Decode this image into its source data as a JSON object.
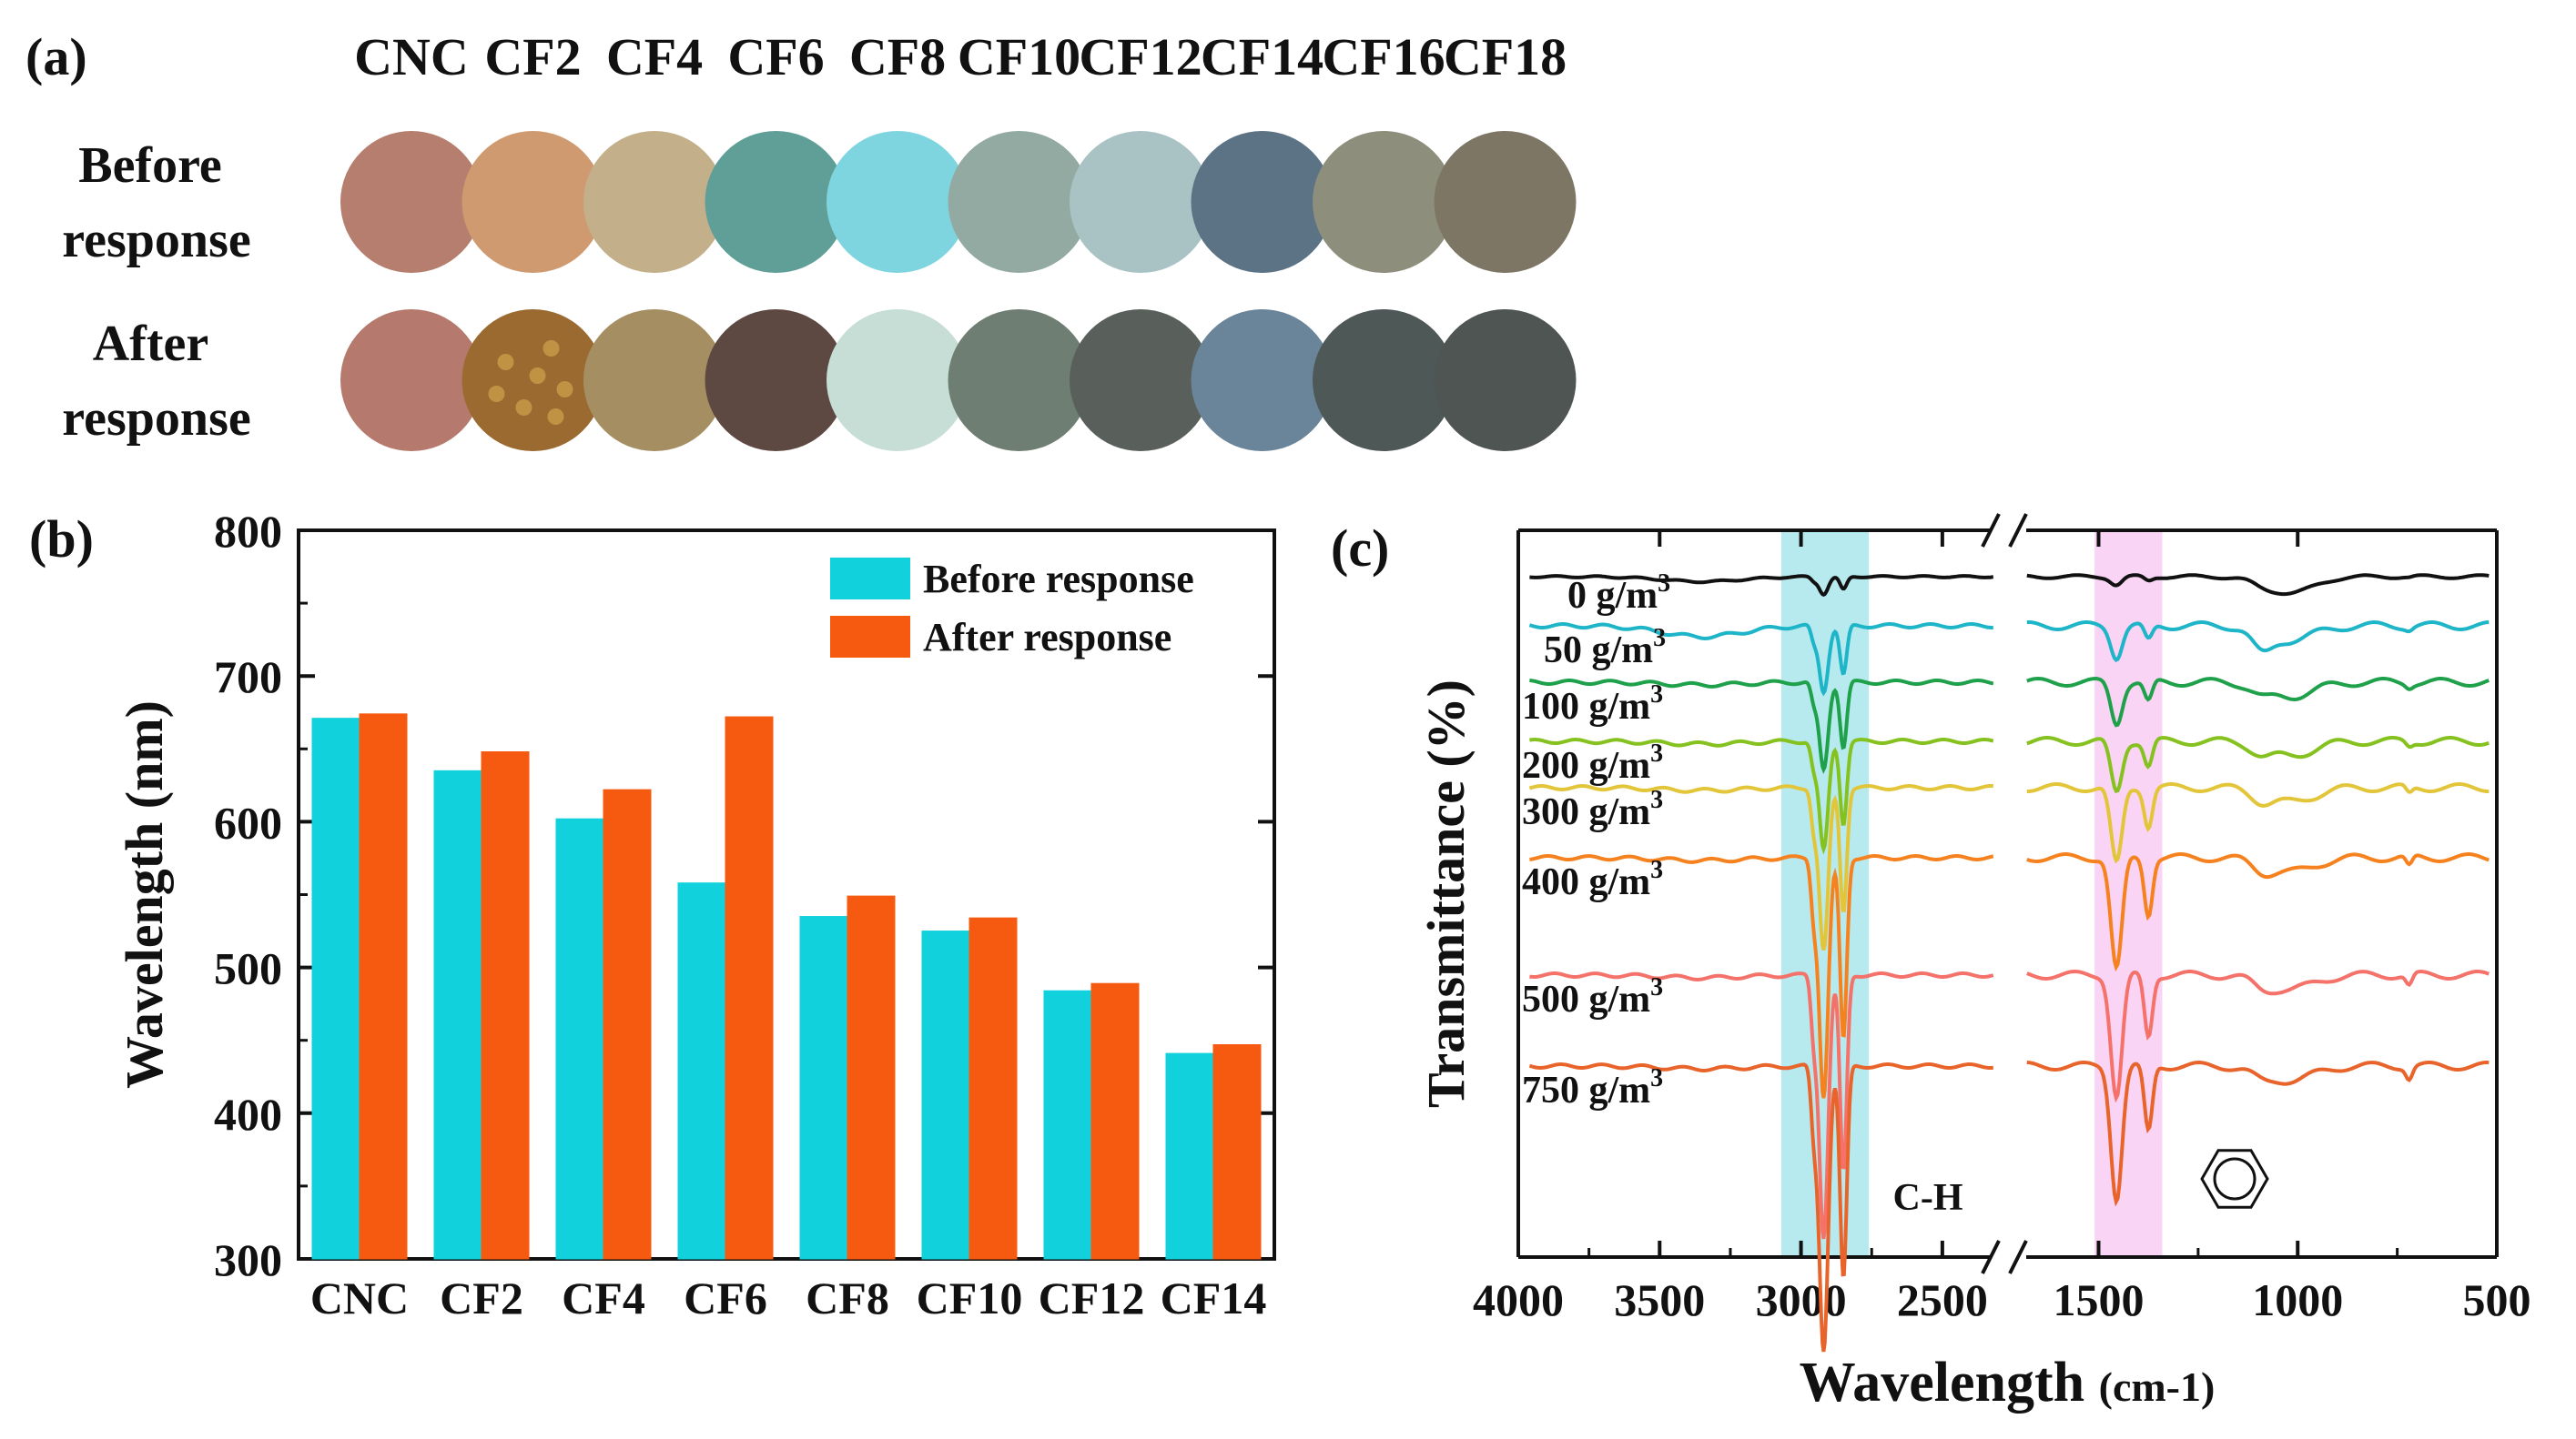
{
  "panel_a": {
    "label": "(a)",
    "row_labels": [
      [
        "Before",
        "response"
      ],
      [
        "After",
        "response"
      ]
    ],
    "samples": [
      "CNC",
      "CF2",
      "CF4",
      "CF6",
      "CF8",
      "CF10",
      "CF12",
      "CF14",
      "CF16",
      "CF18"
    ],
    "before_colors": [
      "#b57e6e",
      "#cf9a70",
      "#c3b08a",
      "#5f9f98",
      "#7fd5df",
      "#93aaa3",
      "#a9c2c4",
      "#5c7385",
      "#8e8e7c",
      "#7e7665"
    ],
    "after_colors": [
      "#b57a6d",
      "#9a6a30",
      "#a58f62",
      "#5e4942",
      "#c7ded6",
      "#6e7e72",
      "#59605b",
      "#6a8499",
      "#4d5857",
      "#4f5552"
    ]
  },
  "panel_b": {
    "label": "(b)"
  },
  "panel_c": {
    "label": "(c)"
  },
  "chart_data": [
    {
      "type": "bar",
      "panel": "(b)",
      "categories": [
        "CNC",
        "CF2",
        "CF4",
        "CF6",
        "CF8",
        "CF10",
        "CF12",
        "CF14"
      ],
      "series": [
        {
          "name": "Before response",
          "color": "#11d1dd",
          "values": [
            671,
            635,
            602,
            558,
            535,
            525,
            484,
            441
          ]
        },
        {
          "name": "After response",
          "color": "#f55a10",
          "values": [
            674,
            648,
            622,
            672,
            549,
            534,
            489,
            447
          ]
        }
      ],
      "ylabel": "Wavelength (nm)",
      "ylim": [
        300,
        800
      ],
      "yticks": [
        300,
        400,
        500,
        600,
        700,
        800
      ],
      "legend": "top-right"
    },
    {
      "type": "line",
      "panel": "(c)",
      "xlabel": "Wavelength",
      "xlabel_unit": "(cm-1)",
      "ylabel": "Transmittance (%)",
      "xlim": [
        4000,
        500
      ],
      "axis_break": [
        2300,
        1700
      ],
      "xticks": [
        4000,
        3500,
        3000,
        2500,
        1500,
        1000,
        500
      ],
      "highlight_regions": [
        {
          "from": 3070,
          "to": 2760,
          "label": "C-H",
          "color": "#9ee3e8"
        },
        {
          "from": 1510,
          "to": 1340,
          "label": "benzene ring",
          "color": "#f7c6f0"
        }
      ],
      "annotation_ch": "C-H",
      "series": [
        {
          "name": "0 g/m3",
          "label": "0 g/m",
          "color": "#111111",
          "offset": 0,
          "amp": 0.35
        },
        {
          "name": "50 g/m3",
          "label": "50 g/m",
          "color": "#1fb5c9",
          "offset": 1,
          "amp": 0.6
        },
        {
          "name": "100 g/m3",
          "label": "100 g/m",
          "color": "#1fa04a",
          "offset": 2,
          "amp": 0.8
        },
        {
          "name": "200 g/m3",
          "label": "200 g/m",
          "color": "#86c21f",
          "offset": 3,
          "amp": 1.0
        },
        {
          "name": "300 g/m3",
          "label": "300 g/m",
          "color": "#e3c53a",
          "offset": 4,
          "amp": 1.5
        },
        {
          "name": "400 g/m3",
          "label": "400 g/m",
          "color": "#f6821f",
          "offset": 5,
          "amp": 2.2
        },
        {
          "name": "500 g/m3",
          "label": "500 g/m",
          "color": "#f4726a",
          "offset": 6,
          "amp": 2.4
        },
        {
          "name": "750 g/m3",
          "label": "750 g/m",
          "color": "#e8642a",
          "offset": 7,
          "amp": 2.6
        }
      ],
      "superscript": "3"
    }
  ]
}
